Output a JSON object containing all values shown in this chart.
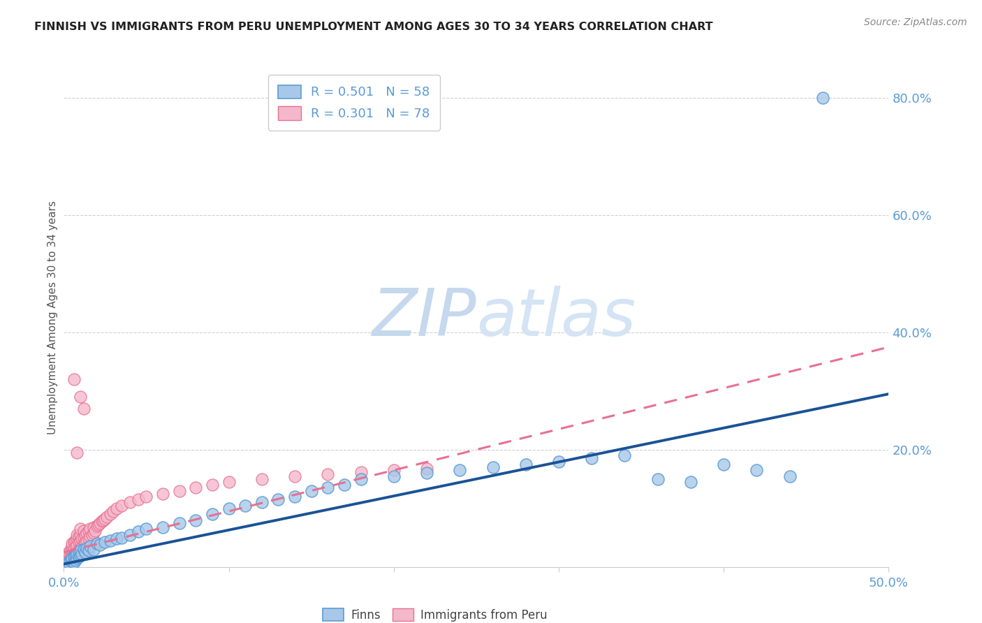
{
  "title": "FINNISH VS IMMIGRANTS FROM PERU UNEMPLOYMENT AMONG AGES 30 TO 34 YEARS CORRELATION CHART",
  "source": "Source: ZipAtlas.com",
  "ylabel": "Unemployment Among Ages 30 to 34 years",
  "watermark_zip": "ZIP",
  "watermark_atlas": "atlas",
  "xlim": [
    0.0,
    0.5
  ],
  "ylim": [
    0.0,
    0.85
  ],
  "finn_color": "#a8c8e8",
  "finn_edge_color": "#5b9bd5",
  "peru_color": "#f4b8cc",
  "peru_edge_color": "#e87090",
  "finn_line_color": "#1a5296",
  "peru_line_color": "#e87090",
  "axis_label_color": "#5b9bd5",
  "title_color": "#222222",
  "grid_color": "#d0d0d0",
  "watermark_color": "#c5d8ed",
  "background_color": "#ffffff",
  "legend_finn_R": "0.501",
  "legend_finn_N": "58",
  "legend_peru_R": "0.301",
  "legend_peru_N": "78",
  "finn_trendline": {
    "x_start": 0.0,
    "y_start": 0.005,
    "x_end": 0.5,
    "y_end": 0.295
  },
  "peru_trendline": {
    "x_start": 0.0,
    "y_start": 0.025,
    "x_end": 0.5,
    "y_end": 0.375
  },
  "finn_scatter_x": [
    0.002,
    0.003,
    0.004,
    0.005,
    0.005,
    0.006,
    0.006,
    0.007,
    0.007,
    0.008,
    0.008,
    0.009,
    0.009,
    0.01,
    0.01,
    0.011,
    0.012,
    0.013,
    0.014,
    0.015,
    0.016,
    0.018,
    0.02,
    0.022,
    0.025,
    0.028,
    0.032,
    0.035,
    0.04,
    0.045,
    0.05,
    0.06,
    0.07,
    0.08,
    0.09,
    0.1,
    0.11,
    0.12,
    0.13,
    0.14,
    0.15,
    0.16,
    0.17,
    0.18,
    0.2,
    0.22,
    0.24,
    0.26,
    0.28,
    0.3,
    0.32,
    0.34,
    0.36,
    0.38,
    0.4,
    0.42,
    0.44,
    0.46
  ],
  "finn_scatter_y": [
    0.005,
    0.008,
    0.01,
    0.012,
    0.015,
    0.008,
    0.018,
    0.012,
    0.02,
    0.015,
    0.022,
    0.018,
    0.025,
    0.02,
    0.028,
    0.022,
    0.03,
    0.025,
    0.032,
    0.028,
    0.035,
    0.03,
    0.04,
    0.038,
    0.042,
    0.045,
    0.048,
    0.05,
    0.055,
    0.06,
    0.065,
    0.068,
    0.075,
    0.08,
    0.09,
    0.1,
    0.105,
    0.11,
    0.115,
    0.12,
    0.13,
    0.135,
    0.14,
    0.15,
    0.155,
    0.16,
    0.165,
    0.17,
    0.175,
    0.18,
    0.185,
    0.19,
    0.15,
    0.145,
    0.175,
    0.165,
    0.155,
    0.8
  ],
  "peru_scatter_x": [
    0.001,
    0.001,
    0.002,
    0.002,
    0.002,
    0.003,
    0.003,
    0.003,
    0.004,
    0.004,
    0.004,
    0.005,
    0.005,
    0.005,
    0.005,
    0.006,
    0.006,
    0.006,
    0.007,
    0.007,
    0.007,
    0.008,
    0.008,
    0.008,
    0.008,
    0.009,
    0.009,
    0.009,
    0.01,
    0.01,
    0.01,
    0.01,
    0.011,
    0.011,
    0.012,
    0.012,
    0.012,
    0.013,
    0.013,
    0.014,
    0.014,
    0.015,
    0.015,
    0.016,
    0.016,
    0.017,
    0.018,
    0.018,
    0.019,
    0.02,
    0.021,
    0.022,
    0.023,
    0.024,
    0.025,
    0.026,
    0.028,
    0.03,
    0.032,
    0.035,
    0.04,
    0.045,
    0.05,
    0.06,
    0.07,
    0.08,
    0.09,
    0.1,
    0.12,
    0.14,
    0.16,
    0.18,
    0.2,
    0.22,
    0.01,
    0.012,
    0.008,
    0.006
  ],
  "peru_scatter_y": [
    0.005,
    0.01,
    0.008,
    0.015,
    0.02,
    0.012,
    0.018,
    0.025,
    0.015,
    0.022,
    0.03,
    0.018,
    0.028,
    0.035,
    0.04,
    0.022,
    0.032,
    0.042,
    0.025,
    0.035,
    0.045,
    0.028,
    0.038,
    0.048,
    0.055,
    0.03,
    0.042,
    0.052,
    0.032,
    0.045,
    0.055,
    0.065,
    0.035,
    0.048,
    0.038,
    0.05,
    0.062,
    0.042,
    0.055,
    0.045,
    0.058,
    0.048,
    0.062,
    0.052,
    0.065,
    0.055,
    0.058,
    0.068,
    0.062,
    0.07,
    0.072,
    0.075,
    0.078,
    0.08,
    0.082,
    0.085,
    0.09,
    0.095,
    0.1,
    0.105,
    0.11,
    0.115,
    0.12,
    0.125,
    0.13,
    0.135,
    0.14,
    0.145,
    0.15,
    0.155,
    0.158,
    0.162,
    0.165,
    0.168,
    0.29,
    0.27,
    0.195,
    0.32
  ]
}
